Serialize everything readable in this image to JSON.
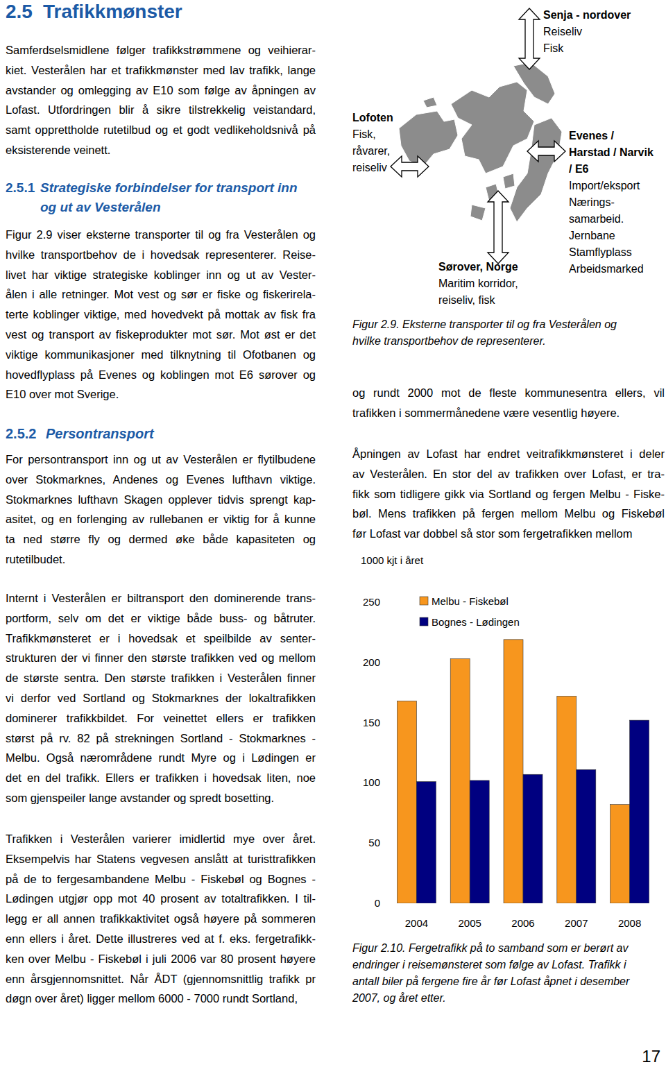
{
  "section": {
    "number": "2.5",
    "title": "Trafikkmønster",
    "intro": [
      "Samferdselsmidlene følger trafikkstrømmene og veihierar-",
      "kiet. Vesterålen har et trafikkmønster med lav trafikk, lange",
      "avstander og omlegging av E10 som følge av åpningen av",
      "Lofast. Utfordringen blir å sikre tilstrekkelig veistandard,",
      "samt opprettholde rutetilbud og et godt vedlikeholdsnivå på",
      "eksisterende veinett."
    ]
  },
  "subsections": [
    {
      "number": "2.5.1",
      "title": [
        "Strategiske forbindelser for transport inn",
        "og ut av Vesterålen"
      ],
      "paragraphs": [
        [
          "Figur 2.9 viser eksterne transporter til og fra Vesterålen og",
          "hvilke transportbehov de i hovedsak representerer. Reise-",
          "livet har viktige strategiske koblinger inn og ut av Vester-",
          "ålen i alle retninger. Mot vest og sør er fiske og fiskerirela-",
          "terte koblinger viktige, med hovedvekt på mottak av fisk fra",
          "vest og transport av fiskeprodukter mot sør. Mot øst er det",
          "viktige kommunikasjoner med tilknytning til Ofotbanen og",
          "hovedflyplass på Evenes og koblingen mot E6 sørover og",
          "E10 over mot Sverige."
        ]
      ]
    },
    {
      "number": "2.5.2",
      "title": [
        "Persontransport"
      ],
      "paragraphs": [
        [
          "For persontransport inn og ut av Vesterålen er flytilbudene",
          "over Stokmarknes, Andenes og Evenes lufthavn viktige.",
          "Stokmarknes lufthavn Skagen opplever tidvis sprengt kap-",
          "asitet, og en forlenging av rullebanen er viktig for å kunne",
          "ta ned større fly og dermed øke både kapasiteten og",
          "rutetilbudet."
        ],
        [
          "Internt i Vesterålen er biltransport den dominerende trans-",
          "portform, selv om det er viktige både buss- og båtruter.",
          "Trafikkmønsteret er i hovedsak et speilbilde av senter-",
          "strukturen der vi finner den største trafikken ved og mellom",
          "de største sentra. Den største trafikken i Vesterålen finner",
          "vi derfor ved Sortland og Stokmarknes der lokaltrafikken",
          "dominerer trafikkbildet. For veinettet ellers er trafikken",
          "størst på rv. 82 på strekningen Sortland - Stokmarknes -",
          "Melbu. Også nærområdene rundt Myre og i Lødingen er",
          "det en del trafikk. Ellers er trafikken i hovedsak liten, noe",
          "som gjenspeiler lange avstander og spredt bosetting."
        ],
        [
          "Trafikken i Vesterålen varierer imidlertid mye over året.",
          "Eksempelvis har Statens vegvesen anslått at turisttrafikken",
          "på de to fergesambandene Melbu - Fiskebøl og Bognes -",
          "Lødingen utgjør opp mot 40 prosent av totaltrafikken. I til-",
          "legg er all annen trafikkaktivitet også høyere på sommeren",
          "enn ellers i året. Dette illustreres ved at f. eks. fergetrafikk-",
          "ken over Melbu - Fiskebøl i juli 2006 var 80 prosent høyere",
          "enn årsgjennomsnittet. Når ÅDT (gjennomsnittlig trafikk pr",
          "døgn over året) ligger mellom 6000 - 7000 rundt Sortland,"
        ],
        [
          "og rundt 2000 mot de fleste kommunesentra ellers, vil",
          "trafikken i sommermånedene være vesentlig høyere."
        ],
        [
          "Åpningen av Lofast har endret veitrafikkmønsteret i deler",
          "av Vesterålen. En stor del av trafikken over Lofast, er tra-",
          "fikk som tidligere gikk via Sortland og fergen Melbu - Fiske-",
          "bøl. Mens trafikken på fergen mellom Melbu og Fiskebøl",
          "før Lofast var dobbel så stor som fergetrafikken mellom"
        ]
      ]
    }
  ],
  "figure_2_9": {
    "labels": [
      {
        "title": [
          "Senja - nordover"
        ],
        "lines": [
          "Reiseliv",
          "Fisk"
        ]
      },
      {
        "title": [
          "Lofoten"
        ],
        "lines": [
          "Fisk,",
          "råvarer,",
          "reiseliv"
        ]
      },
      {
        "title": [
          "Evenes /",
          "Harstad / Narvik",
          "/ E6"
        ],
        "lines": [
          "Import/eksport",
          "Nærings-",
          "samarbeid.",
          "Jernbane",
          "Stamflyplass",
          "Arbeidsmarked"
        ]
      },
      {
        "title": [
          "Sørover, Norge"
        ],
        "lines": [
          "Maritim korridor,",
          "reiseliv, fisk"
        ]
      }
    ],
    "caption": [
      "Figur 2.9. Eksterne transporter til og fra Vesterålen og",
      "hvilke transportbehov de representerer."
    ]
  },
  "chart_data": {
    "type": "bar",
    "ylabel": "1000 kjt i året",
    "categories": [
      "2004",
      "2005",
      "2006",
      "2007",
      "2008"
    ],
    "series": [
      {
        "name": "Melbu - Fiskebøl",
        "color": "#f7961e",
        "values": [
          168,
          203,
          219,
          172,
          82
        ]
      },
      {
        "name": "Bognes - Lødingen",
        "color": "#000080",
        "values": [
          101,
          102,
          107,
          111,
          152
        ]
      }
    ],
    "ylim": [
      0,
      250
    ],
    "yticks": [
      0,
      50,
      100,
      150,
      200,
      250
    ],
    "grid": false,
    "legend": "top"
  },
  "figure_2_10": {
    "caption": [
      "Figur 2.10. Fergetrafikk på to samband som er berørt av",
      "endringer i reisemønsteret som følge av Lofast. Trafikk i",
      "antall biler på fergene fire år før Lofast åpnet i desember",
      "2007, og året etter."
    ]
  },
  "page_number": "17"
}
